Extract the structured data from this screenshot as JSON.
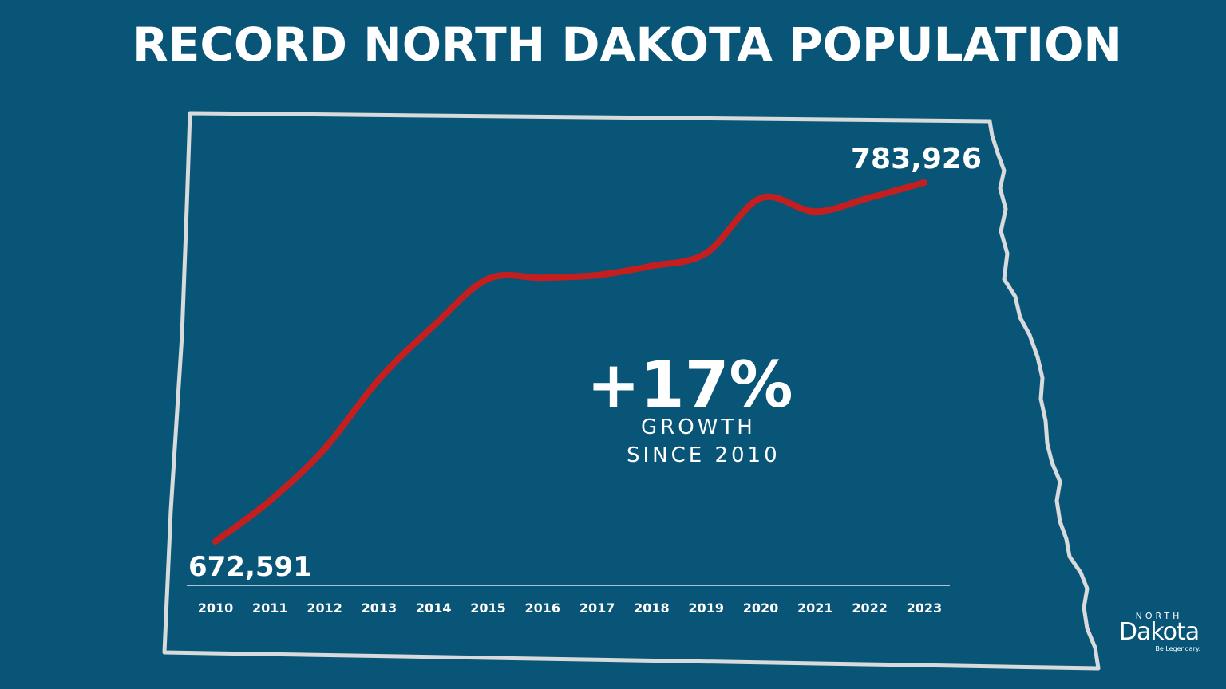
{
  "title": "RECORD NORTH DAKOTA POPULATION",
  "callout": {
    "value": "+17%",
    "line1": "GROWTH",
    "line2": "SINCE 2010"
  },
  "logo": {
    "north": "NORTH",
    "dakota": "Dakota",
    "tagline": "Be Legendary."
  },
  "colors": {
    "background": "#095578",
    "line": "#C41E1E",
    "outline": "#D8DADC",
    "text": "#FFFFFF"
  },
  "chart_data": {
    "type": "line",
    "title": "RECORD NORTH DAKOTA POPULATION",
    "xlabel": "",
    "ylabel": "",
    "categories": [
      "2010",
      "2011",
      "2012",
      "2013",
      "2014",
      "2015",
      "2016",
      "2017",
      "2018",
      "2019",
      "2020",
      "2021",
      "2022",
      "2023"
    ],
    "series": [
      {
        "values": [
          672591,
          685242,
          701345,
          722908,
          739482,
          754066,
          754434,
          755238,
          758080,
          762062,
          779094,
          774948,
          779261,
          783926
        ]
      }
    ],
    "data_labels": {
      "start": "672,591",
      "end": "783,926"
    },
    "ylim": [
      672591,
      783926
    ],
    "grid": false,
    "legend": "none"
  }
}
